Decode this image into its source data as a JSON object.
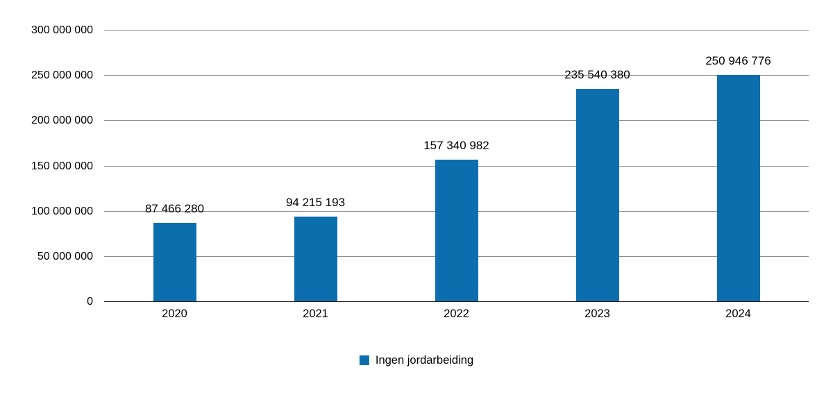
{
  "chart_data": {
    "type": "bar",
    "title": "",
    "xlabel": "",
    "ylabel": "",
    "categories": [
      "2020",
      "2021",
      "2022",
      "2023",
      "2024"
    ],
    "values": [
      87466280,
      94215193,
      157340982,
      235540380,
      250946776
    ],
    "value_labels": [
      "87 466 280",
      "94 215 193",
      "157 340 982",
      "235 540 380",
      "250 946 776"
    ],
    "ylim": [
      0,
      300000000
    ],
    "y_ticks": [
      0,
      50000000,
      100000000,
      150000000,
      200000000,
      250000000,
      300000000
    ],
    "y_tick_labels": [
      "0",
      "50 000 000",
      "100 000 000",
      "150 000 000",
      "200 000 000",
      "250 000 000",
      "300 000 000"
    ],
    "grid": true,
    "bar_color": "#0d6eae",
    "legend_position": "bottom",
    "legend": [
      {
        "label": "Ingen jordarbeiding",
        "color": "#0d6eae"
      }
    ]
  }
}
